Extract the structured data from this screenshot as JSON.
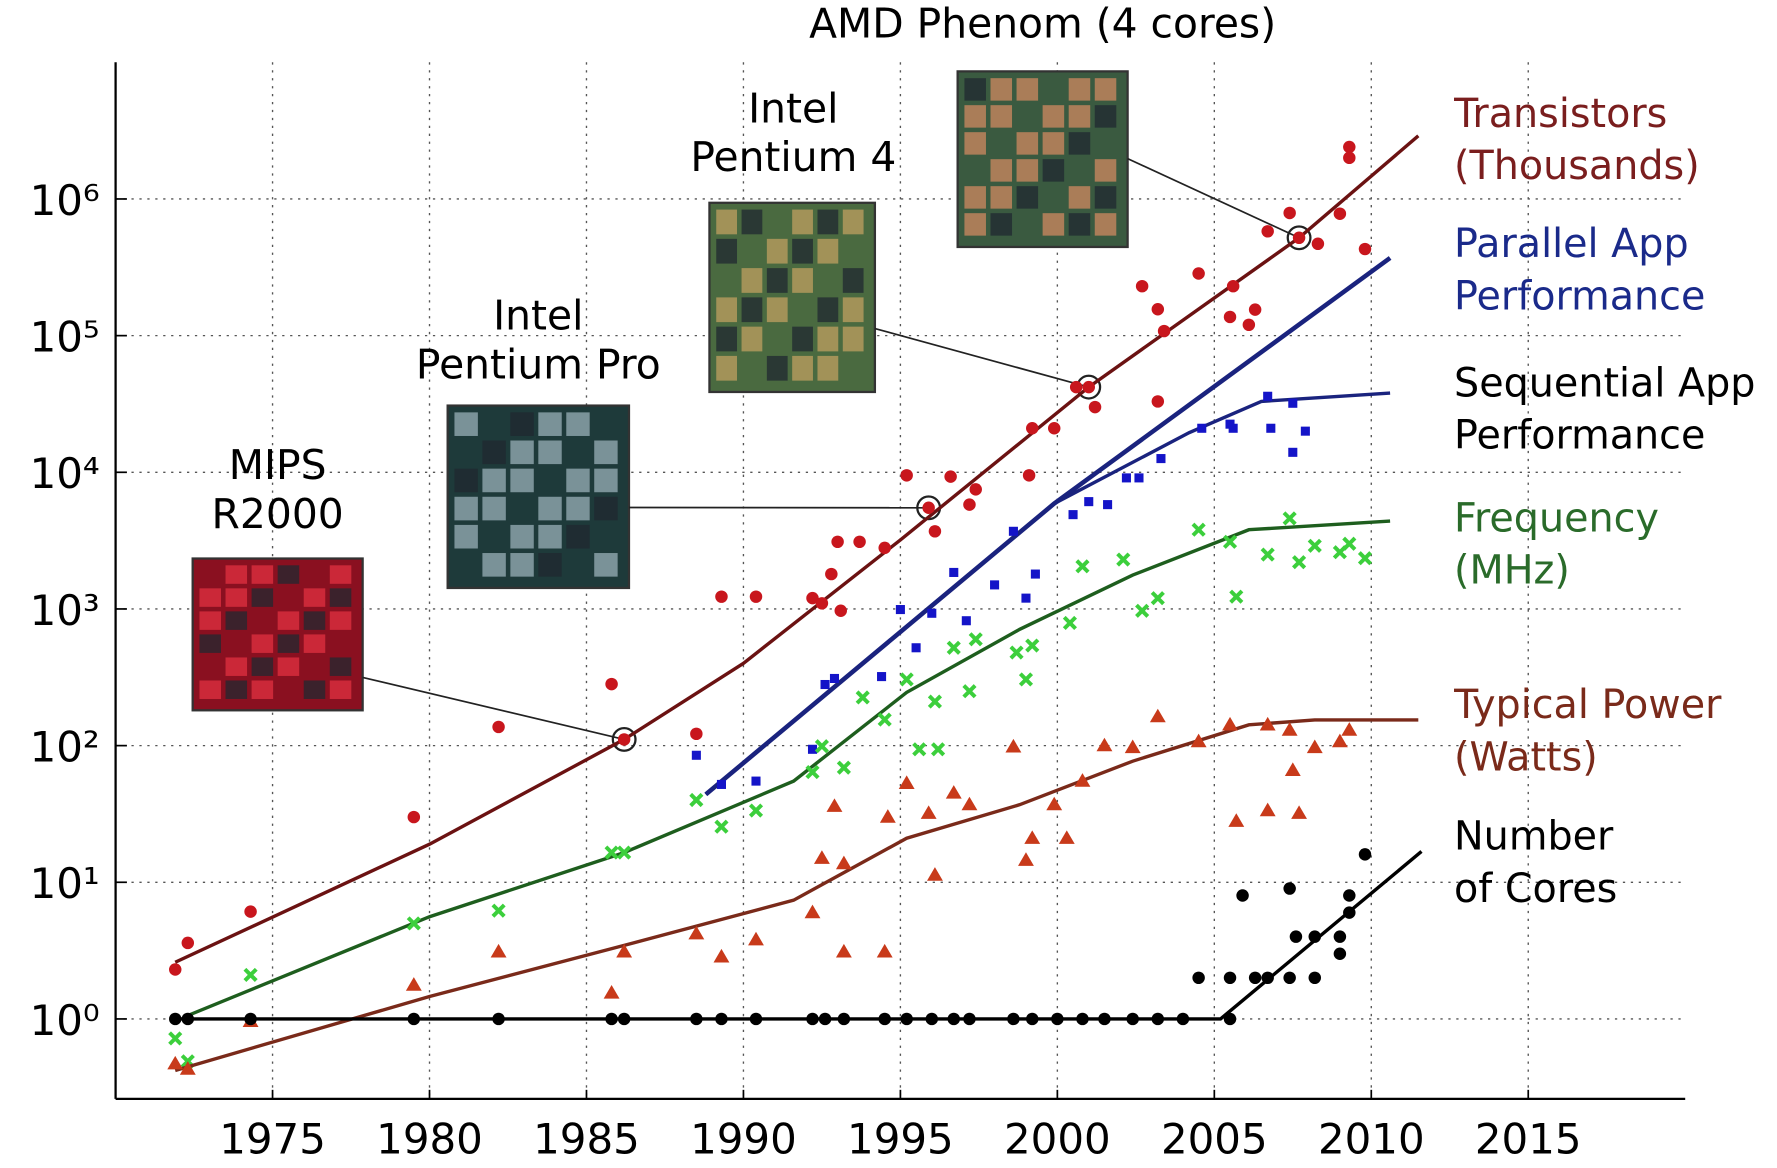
{
  "chart_data": {
    "type": "scatter",
    "xlim": [
      1970,
      2020
    ],
    "xticks": [
      1975,
      1980,
      1985,
      1990,
      1995,
      2000,
      2005,
      2010,
      2015
    ],
    "ylim": [
      0.26,
      10000000
    ],
    "log_y": true,
    "yticks": [
      {
        "value": 1,
        "label": "10⁰"
      },
      {
        "value": 10,
        "label": "10¹"
      },
      {
        "value": 100,
        "label": "10²"
      },
      {
        "value": 1000,
        "label": "10³"
      },
      {
        "value": 10000,
        "label": "10⁴"
      },
      {
        "value": 100000,
        "label": "10⁵"
      },
      {
        "value": 1000000,
        "label": "10⁶"
      }
    ],
    "grid": true,
    "series": [
      {
        "name": "Transistors\n(Thousands)",
        "color": "#c8161d",
        "line_color": "#6b1212",
        "label_color": "#7a1e1e",
        "marker": "circle",
        "x": [
          1971.9,
          1972.3,
          1974.3,
          1979.5,
          1982.2,
          1985.8,
          1986.2,
          1988.5,
          1989.3,
          1990.4,
          1992.2,
          1992.5,
          1993.0,
          1993.7,
          1993.1,
          1992.8,
          1994.5,
          1995.2,
          1995.9,
          1996.1,
          1996.6,
          1997.2,
          1997.4,
          1999.1,
          1999.2,
          1999.9,
          2000.6,
          2001.0,
          2001.2,
          2002.7,
          2003.2,
          2003.2,
          2003.4,
          2004.5,
          2005.5,
          2005.6,
          2006.1,
          2006.3,
          2006.7,
          2007.4,
          2007.7,
          2008.3,
          2009.0,
          2009.3,
          2009.3,
          2009.8
        ],
        "values": [
          2.3,
          3.6,
          6.1,
          30,
          137,
          282,
          111,
          122,
          1230,
          1230,
          1200,
          1100,
          3100,
          3100,
          970,
          1800,
          2800,
          9500,
          5500,
          3700,
          9300,
          5800,
          7500,
          9500,
          21000,
          21000,
          42000,
          42000,
          30000,
          230000,
          156000,
          33000,
          108000,
          285000,
          137000,
          230000,
          120000,
          155000,
          580000,
          790000,
          520000,
          470000,
          780000,
          2400000,
          2000000,
          430000
        ],
        "trend": {
          "x": [
            1971.9,
            1980,
            1986.2,
            1990,
            1995,
            2001,
            2007.7,
            2011.5
          ],
          "values": [
            2.6,
            19,
            111,
            400,
            3200,
            42000,
            520000,
            2900000
          ]
        }
      },
      {
        "name": "Parallel App\nPerformance",
        "color": "#1a237e",
        "line_color": "#1a237e",
        "label_color": "#1a2a8a",
        "marker": "none",
        "x": [],
        "values": [],
        "trend": {
          "x": [
            1988.8,
            1999.9,
            2010.6
          ],
          "values": [
            44,
            5900,
            370000
          ]
        }
      },
      {
        "name": "Sequential App\nPerformance",
        "color": "#1414c8",
        "line_color": "#1a237e",
        "label_color": "#000000",
        "marker": "square",
        "x": [
          1988.5,
          1989.3,
          1990.4,
          1992.2,
          1992.6,
          1992.9,
          1994.4,
          1995.0,
          1995.5,
          1996.0,
          1996.7,
          1997.1,
          1998.0,
          1998.6,
          1999.0,
          1999.3,
          2000.5,
          2001.0,
          2001.6,
          2002.2,
          2002.6,
          2003.3,
          2004.6,
          2005.5,
          2005.6,
          2006.7,
          2006.8,
          2007.5,
          2007.5,
          2007.9
        ],
        "values": [
          85,
          52,
          55,
          94,
          280,
          310,
          320,
          990,
          520,
          930,
          1850,
          820,
          1500,
          3700,
          1200,
          1800,
          4900,
          6100,
          5800,
          9100,
          9100,
          12600,
          21000,
          22500,
          21000,
          36000,
          21000,
          32000,
          14000,
          20000
        ],
        "trend": {
          "x": [
            1988.8,
            1999.9,
            2004.2,
            2006.5,
            2010.6
          ],
          "values": [
            44,
            5900,
            19500,
            33000,
            38000
          ]
        }
      },
      {
        "name": "Frequency\n(MHz)",
        "color": "#3ccf3c",
        "line_color": "#1e5e1e",
        "label_color": "#2a6b2a",
        "marker": "x",
        "x": [
          1971.9,
          1972.3,
          1974.3,
          1979.5,
          1982.2,
          1985.8,
          1986.2,
          1988.5,
          1989.3,
          1990.4,
          1992.2,
          1992.5,
          1993.2,
          1993.8,
          1994.5,
          1995.2,
          1995.6,
          1996.1,
          1996.2,
          1996.7,
          1997.2,
          1997.4,
          1998.7,
          1999.0,
          1999.2,
          2000.4,
          2000.8,
          2002.1,
          2002.7,
          2003.2,
          2004.5,
          2005.5,
          2005.7,
          2006.7,
          2007.4,
          2007.7,
          2008.2,
          2009.0,
          2009.3,
          2009.8
        ],
        "values": [
          0.72,
          0.49,
          2.1,
          5,
          6.2,
          16.5,
          16.5,
          40,
          25.5,
          33.5,
          64,
          99,
          69,
          225,
          155,
          305,
          94,
          210,
          94,
          520,
          250,
          600,
          480,
          305,
          540,
          790,
          2050,
          2300,
          970,
          1200,
          3800,
          3100,
          1230,
          2500,
          4600,
          2200,
          2900,
          2600,
          3000,
          2350
        ],
        "trend": {
          "x": [
            1972.3,
            1980,
            1986.2,
            1991.6,
            1995.2,
            1998.8,
            2002.4,
            2006.1,
            2010.6
          ],
          "values": [
            1.06,
            5.6,
            16.5,
            55,
            245,
            710,
            1770,
            3800,
            4400
          ]
        }
      },
      {
        "name": "Typical Power\n(Watts)",
        "color": "#c83a1a",
        "line_color": "#7a2a1a",
        "label_color": "#7a2a1a",
        "marker": "triangle",
        "x": [
          1971.9,
          1972.3,
          1974.3,
          1979.5,
          1982.2,
          1985.8,
          1986.2,
          1988.5,
          1989.3,
          1990.4,
          1992.2,
          1992.5,
          1992.9,
          1993.2,
          1993.2,
          1994.5,
          1994.6,
          1995.2,
          1995.9,
          1996.1,
          1996.7,
          1997.2,
          1998.6,
          1999.0,
          1999.2,
          1999.9,
          2000.3,
          2000.8,
          2001.5,
          2002.4,
          2003.2,
          2004.5,
          2005.5,
          2005.7,
          2006.7,
          2006.7,
          2007.4,
          2007.5,
          2007.7,
          2008.2,
          2009.0,
          2009.3
        ],
        "values": [
          0.47,
          0.43,
          0.96,
          1.77,
          3.1,
          1.55,
          3.1,
          4.2,
          2.85,
          3.8,
          6,
          15,
          36,
          13.7,
          3.1,
          3.1,
          30,
          53,
          32,
          11.3,
          45,
          37,
          98,
          14.5,
          21,
          37,
          21,
          55,
          100,
          97,
          163,
          107,
          142,
          28,
          142,
          33.5,
          130,
          66,
          32,
          97,
          107,
          130
        ],
        "trend": {
          "x": [
            1971.9,
            1980,
            1986.2,
            1991.6,
            1995.2,
            1998.8,
            2002.4,
            2006.1,
            2008.2,
            2011.5
          ],
          "values": [
            0.42,
            1.46,
            3.45,
            7.4,
            21,
            37,
            77,
            142,
            154,
            154
          ]
        }
      },
      {
        "name": "Number\nof Cores",
        "color": "#000000",
        "line_color": "#000000",
        "label_color": "#000000",
        "marker": "circle",
        "x": [
          1971.9,
          1972.3,
          1974.3,
          1979.5,
          1982.2,
          1985.8,
          1986.2,
          1988.5,
          1989.3,
          1990.4,
          1992.2,
          1992.6,
          1993.2,
          1994.5,
          1995.2,
          1996.0,
          1996.7,
          1997.2,
          1998.6,
          1999.2,
          2000.0,
          2000.8,
          2001.5,
          2002.4,
          2003.2,
          2004.0,
          2004.5,
          2005.5,
          2005.5,
          2005.9,
          2006.3,
          2006.7,
          2007.4,
          2007.4,
          2007.6,
          2008.2,
          2008.2,
          2009.0,
          2009.0,
          2009.3,
          2009.3,
          2009.8
        ],
        "values": [
          1,
          1,
          1,
          1,
          1,
          1,
          1,
          1,
          1,
          1,
          1,
          1,
          1,
          1,
          1,
          1,
          1,
          1,
          1,
          1,
          1,
          1,
          1,
          1,
          1,
          1,
          2,
          1,
          2,
          8,
          2,
          2,
          2,
          9,
          4,
          2,
          4,
          3,
          4,
          6,
          8,
          16
        ],
        "trend": {
          "x": [
            1971.9,
            2005.2,
            2011.6
          ],
          "values": [
            1,
            1,
            16.8
          ]
        }
      }
    ],
    "annotations": [
      {
        "text": "MIPS\nR2000",
        "x": 1986.2,
        "y": 111
      },
      {
        "text": "Intel\nPentium Pro",
        "x": 1995.9,
        "y": 5500
      },
      {
        "text": "Intel\nPentium 4",
        "x": 2001.0,
        "y": 42000
      },
      {
        "text": "AMD Phenom (4 cores)",
        "x": 2007.7,
        "y": 520000
      }
    ]
  }
}
